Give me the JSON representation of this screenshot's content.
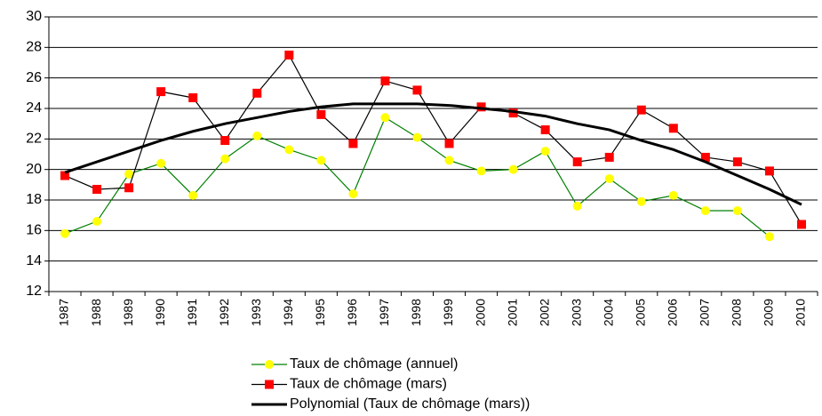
{
  "chart_data": {
    "type": "line",
    "categories": [
      "1987",
      "1988",
      "1989",
      "1990",
      "1991",
      "1992",
      "1993",
      "1994",
      "1995",
      "1996",
      "1997",
      "1998",
      "1999",
      "2000",
      "2001",
      "2002",
      "2003",
      "2004",
      "2005",
      "2006",
      "2007",
      "2008",
      "2009",
      "2010"
    ],
    "series": [
      {
        "name": "Taux de chômage (annuel)",
        "color": "#008000",
        "marker": "circle",
        "marker_color": "#ffff00",
        "values": [
          15.8,
          16.6,
          19.7,
          20.4,
          18.3,
          20.7,
          22.2,
          21.3,
          20.6,
          18.4,
          23.4,
          22.1,
          20.6,
          19.9,
          20.0,
          21.2,
          17.6,
          19.4,
          17.9,
          18.3,
          17.3,
          17.3,
          15.6,
          null
        ]
      },
      {
        "name": "Taux de chômage (mars)",
        "color": "#000000",
        "marker": "square",
        "marker_color": "#ff0000",
        "values": [
          19.6,
          18.7,
          18.8,
          25.1,
          24.7,
          21.9,
          25.0,
          27.5,
          23.6,
          21.7,
          25.8,
          25.2,
          21.7,
          24.1,
          23.7,
          22.6,
          20.5,
          20.8,
          23.9,
          22.7,
          20.8,
          20.5,
          19.9,
          16.4
        ]
      },
      {
        "name": "Polynomial (Taux de chômage (mars))",
        "color": "#000000",
        "marker": "none",
        "marker_color": "#000000",
        "values": [
          19.8,
          20.5,
          21.2,
          21.9,
          22.5,
          23.0,
          23.4,
          23.8,
          24.1,
          24.3,
          24.3,
          24.3,
          24.2,
          24.0,
          23.8,
          23.5,
          23.0,
          22.6,
          21.9,
          21.3,
          20.5,
          19.6,
          18.7,
          17.7
        ]
      }
    ],
    "ylim": [
      12,
      30
    ],
    "yticks": [
      12,
      14,
      16,
      18,
      20,
      22,
      24,
      26,
      28,
      30
    ],
    "grid": true
  }
}
